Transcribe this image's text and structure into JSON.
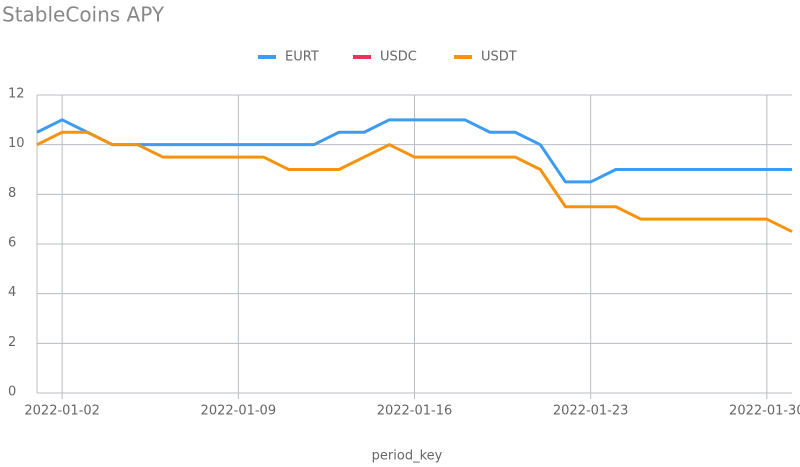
{
  "chart_data": {
    "type": "line",
    "title": "StableCoins APY",
    "x_label": "period_key",
    "x": [
      "2022-01-01",
      "2022-01-02",
      "2022-01-03",
      "2022-01-04",
      "2022-01-05",
      "2022-01-06",
      "2022-01-07",
      "2022-01-08",
      "2022-01-09",
      "2022-01-10",
      "2022-01-11",
      "2022-01-12",
      "2022-01-13",
      "2022-01-14",
      "2022-01-15",
      "2022-01-16",
      "2022-01-17",
      "2022-01-18",
      "2022-01-19",
      "2022-01-20",
      "2022-01-21",
      "2022-01-22",
      "2022-01-23",
      "2022-01-24",
      "2022-01-25",
      "2022-01-26",
      "2022-01-27",
      "2022-01-28",
      "2022-01-29",
      "2022-01-30",
      "2022-01-31"
    ],
    "xticks": [
      "2022-01-02",
      "2022-01-09",
      "2022-01-16",
      "2022-01-23",
      "2022-01-30"
    ],
    "series": [
      {
        "name": "EURT",
        "color": "#3d9bf0",
        "values": [
          10.5,
          11,
          10.5,
          10,
          10,
          10,
          10,
          10,
          10,
          10,
          10,
          10,
          10.5,
          10.5,
          11,
          11,
          11,
          11,
          10.5,
          10.5,
          10,
          8.5,
          8.5,
          9,
          9,
          9,
          9,
          9,
          9,
          9,
          9
        ]
      },
      {
        "name": "USDC",
        "color": "#f0305a",
        "values": [
          null,
          null,
          null,
          null,
          null,
          null,
          null,
          null,
          null,
          null,
          null,
          null,
          null,
          null,
          null,
          null,
          null,
          null,
          null,
          null,
          null,
          null,
          null,
          null,
          null,
          null,
          null,
          null,
          null,
          null,
          null
        ]
      },
      {
        "name": "USDT",
        "color": "#f5930f",
        "values": [
          10,
          10.5,
          10.5,
          10,
          10,
          9.5,
          9.5,
          9.5,
          9.5,
          9.5,
          9,
          9,
          9,
          9.5,
          10,
          9.5,
          9.5,
          9.5,
          9.5,
          9.5,
          9,
          7.5,
          7.5,
          7.5,
          7,
          7,
          7,
          7,
          7,
          7,
          6.5
        ]
      }
    ],
    "ylim": [
      0,
      12
    ],
    "yticks": [
      0,
      2,
      4,
      6,
      8,
      10,
      12
    ],
    "grid": true,
    "legend": "top"
  }
}
